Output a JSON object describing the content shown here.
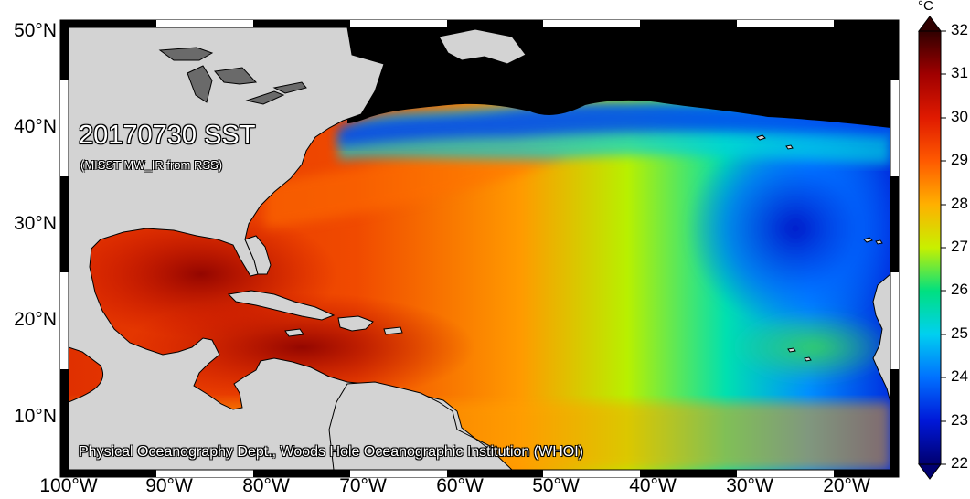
{
  "map": {
    "title": "20170730 SST",
    "subtitle": "(MISST MW_IR from RSS)",
    "credit": "Physical Oceanography Dept., Woods Hole Oceanographic Institution (WHOI)",
    "region": "North Atlantic Ocean, Gulf of Mexico and Caribbean Sea",
    "lon_range": [
      -100,
      -15
    ],
    "lat_range": [
      5,
      51
    ],
    "lat_ticks": [
      {
        "value": 10,
        "label": "10°N"
      },
      {
        "value": 20,
        "label": "20°N"
      },
      {
        "value": 30,
        "label": "30°N"
      },
      {
        "value": 40,
        "label": "40°N"
      },
      {
        "value": 50,
        "label": "50°N"
      }
    ],
    "lon_ticks": [
      {
        "value": -100,
        "label": "100°W"
      },
      {
        "value": -90,
        "label": "90°W"
      },
      {
        "value": -80,
        "label": "80°W"
      },
      {
        "value": -70,
        "label": "70°W"
      },
      {
        "value": -60,
        "label": "60°W"
      },
      {
        "value": -50,
        "label": "50°W"
      },
      {
        "value": -40,
        "label": "40°W"
      },
      {
        "value": -30,
        "label": "30°W"
      },
      {
        "value": -20,
        "label": "20°W"
      }
    ],
    "land_color": "#d3d3d3",
    "no_data_color": "#000000"
  },
  "colorbar": {
    "unit": "°C",
    "min": 22,
    "max": 32,
    "ticks": [
      "32",
      "31",
      "30",
      "29",
      "28",
      "27",
      "26",
      "25",
      "24",
      "23",
      "22"
    ],
    "stops": [
      {
        "value": 22,
        "color": "#000070"
      },
      {
        "value": 23,
        "color": "#0018d8"
      },
      {
        "value": 24,
        "color": "#0070ff"
      },
      {
        "value": 25,
        "color": "#00d0f0"
      },
      {
        "value": 26,
        "color": "#00e080"
      },
      {
        "value": 27,
        "color": "#c8f000"
      },
      {
        "value": 28,
        "color": "#ffb000"
      },
      {
        "value": 29,
        "color": "#ff5a00"
      },
      {
        "value": 30,
        "color": "#e01a00"
      },
      {
        "value": 31,
        "color": "#a00000"
      },
      {
        "value": 32,
        "color": "#300000"
      }
    ]
  }
}
